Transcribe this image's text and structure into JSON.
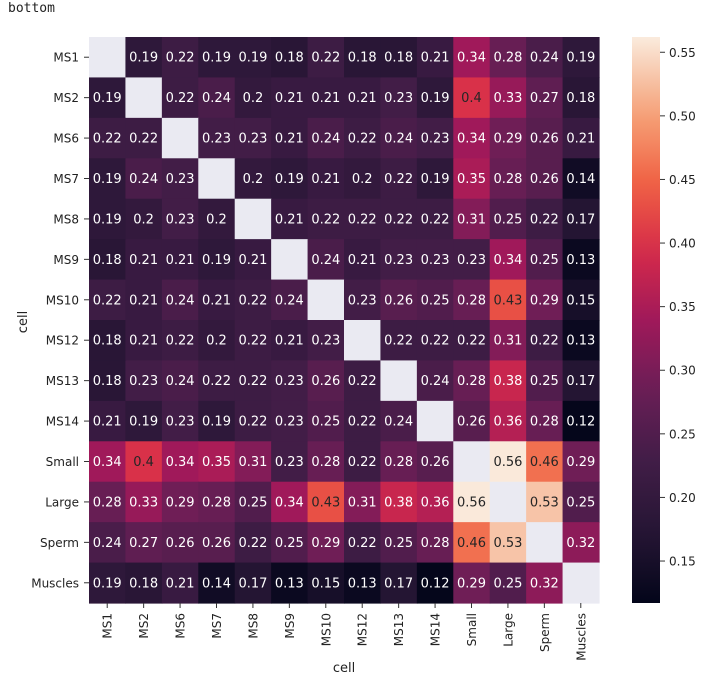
{
  "caption": "bottom",
  "chart_data": {
    "type": "heatmap",
    "xlabel": "cell",
    "ylabel": "cell",
    "x": [
      "MS1",
      "MS2",
      "MS6",
      "MS7",
      "MS8",
      "MS9",
      "MS10",
      "MS12",
      "MS13",
      "MS14",
      "Small",
      "Large",
      "Sperm",
      "Muscles"
    ],
    "y": [
      "MS1",
      "MS2",
      "MS6",
      "MS7",
      "MS8",
      "MS9",
      "MS10",
      "MS12",
      "MS13",
      "MS14",
      "Small",
      "Large",
      "Sperm",
      "Muscles"
    ],
    "values": [
      [
        null,
        0.19,
        0.22,
        0.19,
        0.19,
        0.18,
        0.22,
        0.18,
        0.18,
        0.21,
        0.34,
        0.28,
        0.24,
        0.19
      ],
      [
        0.19,
        null,
        0.22,
        0.24,
        0.2,
        0.21,
        0.21,
        0.21,
        0.23,
        0.19,
        0.4,
        0.33,
        0.27,
        0.18
      ],
      [
        0.22,
        0.22,
        null,
        0.23,
        0.23,
        0.21,
        0.24,
        0.22,
        0.24,
        0.23,
        0.34,
        0.29,
        0.26,
        0.21
      ],
      [
        0.19,
        0.24,
        0.23,
        null,
        0.2,
        0.19,
        0.21,
        0.2,
        0.22,
        0.19,
        0.35,
        0.28,
        0.26,
        0.14
      ],
      [
        0.19,
        0.2,
        0.23,
        0.2,
        null,
        0.21,
        0.22,
        0.22,
        0.22,
        0.22,
        0.31,
        0.25,
        0.22,
        0.17
      ],
      [
        0.18,
        0.21,
        0.21,
        0.19,
        0.21,
        null,
        0.24,
        0.21,
        0.23,
        0.23,
        0.23,
        0.34,
        0.25,
        0.13
      ],
      [
        0.22,
        0.21,
        0.24,
        0.21,
        0.22,
        0.24,
        null,
        0.23,
        0.26,
        0.25,
        0.28,
        0.43,
        0.29,
        0.15
      ],
      [
        0.18,
        0.21,
        0.22,
        0.2,
        0.22,
        0.21,
        0.23,
        null,
        0.22,
        0.22,
        0.22,
        0.31,
        0.22,
        0.13
      ],
      [
        0.18,
        0.23,
        0.24,
        0.22,
        0.22,
        0.23,
        0.26,
        0.22,
        null,
        0.24,
        0.28,
        0.38,
        0.25,
        0.17
      ],
      [
        0.21,
        0.19,
        0.23,
        0.19,
        0.22,
        0.23,
        0.25,
        0.22,
        0.24,
        null,
        0.26,
        0.36,
        0.28,
        0.12
      ],
      [
        0.34,
        0.4,
        0.34,
        0.35,
        0.31,
        0.23,
        0.28,
        0.22,
        0.28,
        0.26,
        null,
        0.56,
        0.46,
        0.29
      ],
      [
        0.28,
        0.33,
        0.29,
        0.28,
        0.25,
        0.34,
        0.43,
        0.31,
        0.38,
        0.36,
        0.56,
        null,
        0.53,
        0.25
      ],
      [
        0.24,
        0.27,
        0.26,
        0.26,
        0.22,
        0.25,
        0.29,
        0.22,
        0.25,
        0.28,
        0.46,
        0.53,
        null,
        0.32
      ],
      [
        0.19,
        0.18,
        0.21,
        0.14,
        0.17,
        0.13,
        0.15,
        0.13,
        0.17,
        0.12,
        0.29,
        0.25,
        0.32,
        null
      ]
    ],
    "zlim": [
      0.117,
      0.562
    ],
    "colorbar_ticks": [
      "0.15",
      "0.20",
      "0.25",
      "0.30",
      "0.35",
      "0.40",
      "0.45",
      "0.50",
      "0.55"
    ],
    "colormap": "rocket",
    "missing_color": "#eaeaf2",
    "grid": false
  }
}
